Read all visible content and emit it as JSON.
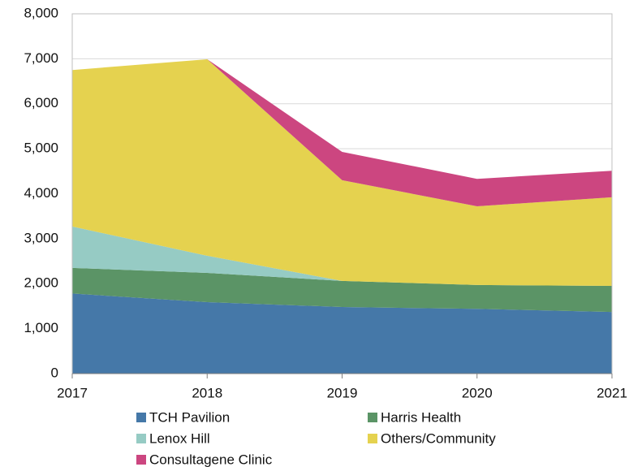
{
  "chart_data": {
    "type": "area",
    "stacked": true,
    "x": [
      2017,
      2018,
      2019,
      2020,
      2021
    ],
    "xlim": [
      2017,
      2021
    ],
    "xticks": [
      2017,
      2018,
      2019,
      2020,
      2021
    ],
    "ylim": [
      0,
      8000
    ],
    "yticks": [
      0,
      {
        "value": 1000,
        "label": "1,000"
      },
      {
        "value": 2000,
        "label": "2,000"
      },
      {
        "value": 3000,
        "label": "3,000"
      },
      {
        "value": 4000,
        "label": "4,000"
      },
      {
        "value": 5000,
        "label": "5,000"
      },
      {
        "value": 6000,
        "label": "6,000"
      },
      {
        "value": 7000,
        "label": "7,000"
      },
      {
        "value": 8000,
        "label": "8,000"
      }
    ],
    "grid": true,
    "legend": "bottom",
    "series": [
      {
        "name": "TCH Pavilion",
        "color": "#4578a8",
        "values": [
          1780,
          1590,
          1480,
          1440,
          1370
        ]
      },
      {
        "name": "Harris Health",
        "color": "#5b9466",
        "values": [
          570,
          650,
          580,
          530,
          580
        ]
      },
      {
        "name": "Lenox Hill",
        "color": "#96cbc4",
        "values": [
          920,
          380,
          0,
          0,
          0
        ]
      },
      {
        "name": "Others/Community",
        "color": "#e5d24f",
        "values": [
          3480,
          4370,
          2240,
          1750,
          1970
        ]
      },
      {
        "name": "Consultagene Clinic",
        "color": "#cc4680",
        "values": [
          0,
          0,
          630,
          610,
          590
        ]
      }
    ]
  }
}
